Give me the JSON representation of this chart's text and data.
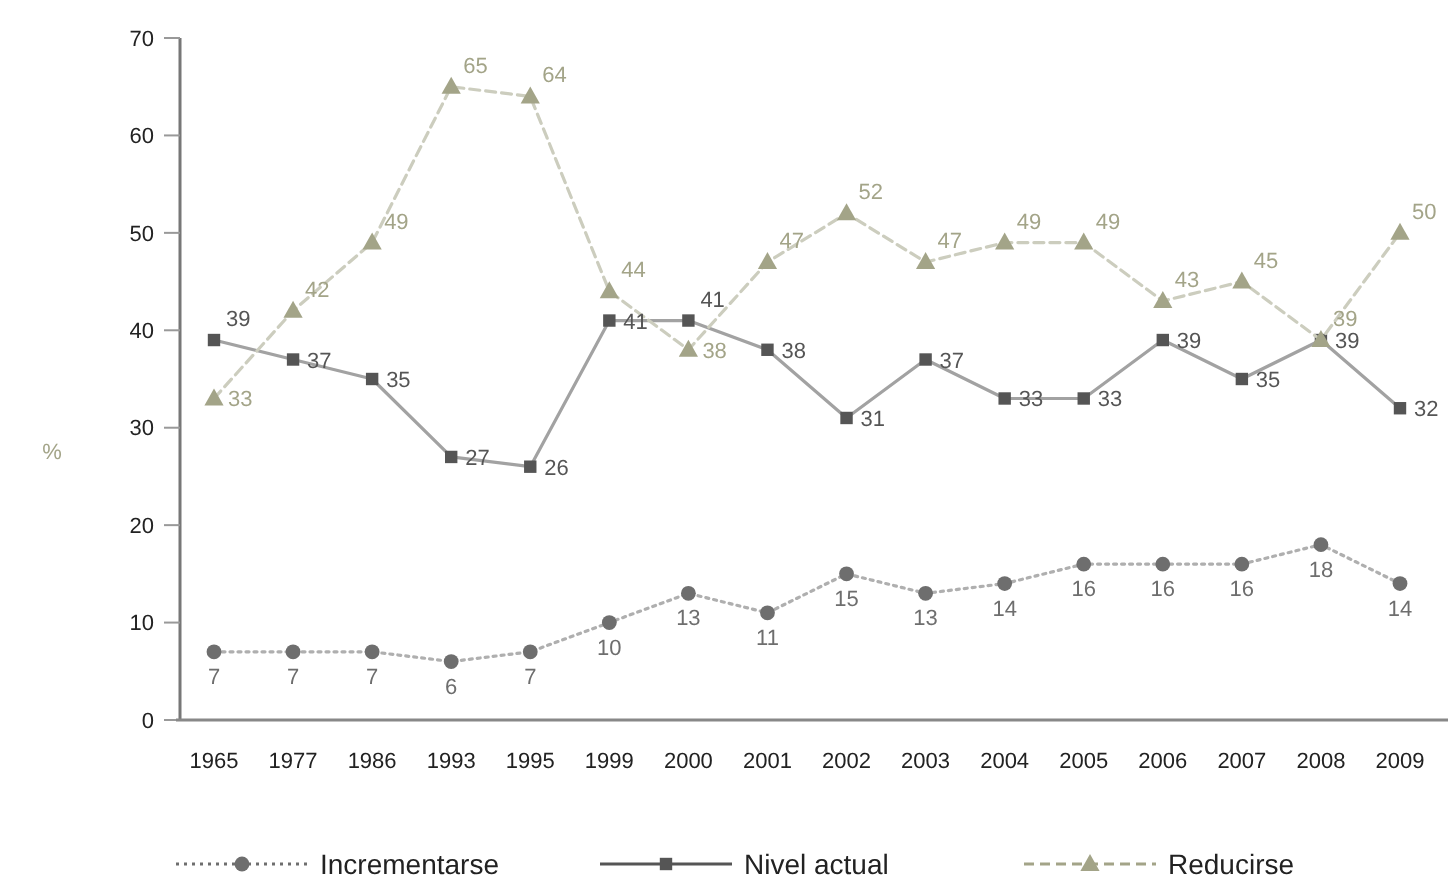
{
  "chart_data": {
    "type": "line",
    "ylabel": "%",
    "categories": [
      "1965",
      "1977",
      "1986",
      "1993",
      "1995",
      "1999",
      "2000",
      "2001",
      "2002",
      "2003",
      "2004",
      "2005",
      "2006",
      "2007",
      "2008",
      "2009"
    ],
    "series": [
      {
        "name": "Incrementarse",
        "color": "#6e6e6e",
        "marker": "circle",
        "line_style": "dotted",
        "values": [
          7,
          7,
          7,
          6,
          7,
          10,
          13,
          11,
          15,
          13,
          14,
          16,
          16,
          16,
          18,
          14
        ]
      },
      {
        "name": "Nivel actual",
        "color": "#555555",
        "marker": "square",
        "line_style": "solid",
        "values": [
          39,
          37,
          35,
          27,
          26,
          41,
          41,
          38,
          31,
          37,
          33,
          33,
          39,
          35,
          39,
          32
        ]
      },
      {
        "name": "Reducirse",
        "color": "#a3a488",
        "marker": "triangle",
        "line_style": "dashed",
        "values": [
          33,
          42,
          49,
          65,
          64,
          44,
          38,
          47,
          52,
          47,
          49,
          49,
          43,
          45,
          39,
          50
        ]
      }
    ],
    "ylim": [
      0,
      70
    ],
    "yticks": [
      0,
      10,
      20,
      30,
      40,
      50,
      60,
      70
    ],
    "data_labels": true,
    "legend": "bottom"
  }
}
